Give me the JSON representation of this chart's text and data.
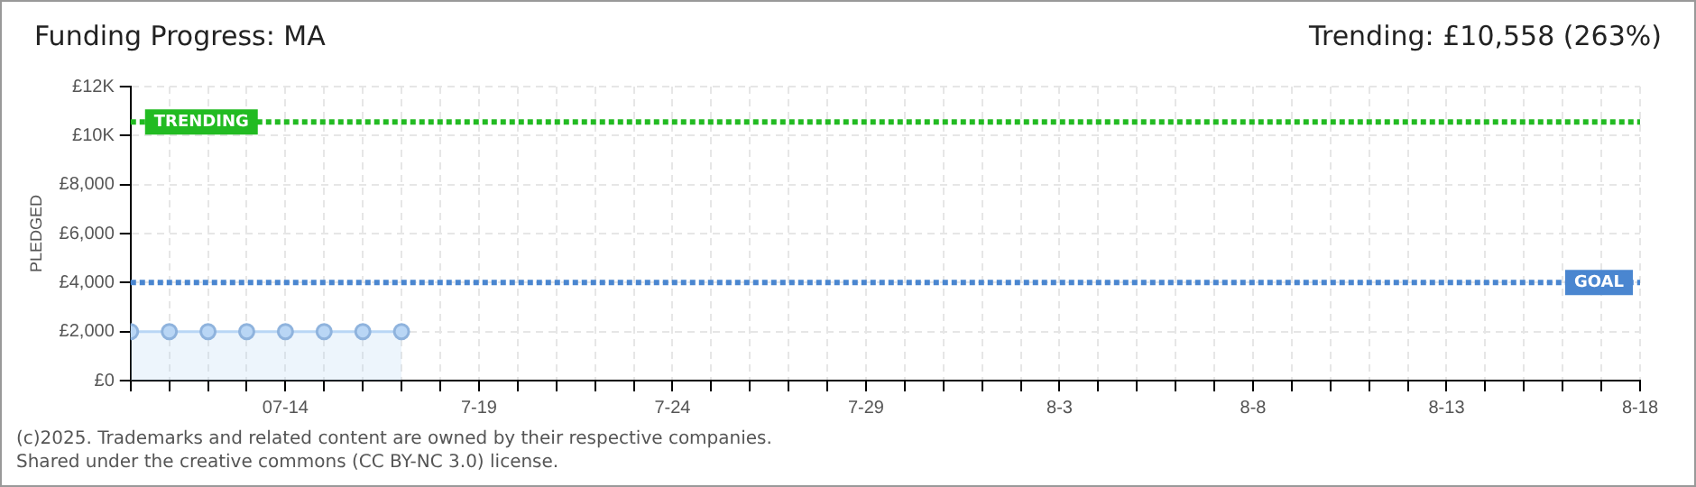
{
  "chart_data": {
    "type": "area",
    "title": "Funding Progress: MA",
    "subtitle": "Trending:  £10,558 (263%)",
    "ylabel": "PLEDGED",
    "x": [
      "2025-07-10",
      "2025-07-11",
      "2025-07-12",
      "2025-07-13",
      "2025-07-14",
      "2025-07-15",
      "2025-07-16",
      "2025-07-17"
    ],
    "series": [
      {
        "color": "#b9d6f5",
        "values": [
          2000,
          2000,
          2000,
          2000,
          2000,
          2000,
          2000,
          2000
        ]
      }
    ],
    "xlim": [
      "2025-07-10",
      "2025-08-18"
    ],
    "xticks": [
      {
        "value": "2025-07-10",
        "label": null
      },
      {
        "value": "2025-07-11",
        "label": null
      },
      {
        "value": "2025-07-12",
        "label": null
      },
      {
        "value": "2025-07-13",
        "label": null
      },
      {
        "value": "2025-07-14",
        "label": "07-14"
      },
      {
        "value": "2025-07-15",
        "label": null
      },
      {
        "value": "2025-07-16",
        "label": null
      },
      {
        "value": "2025-07-17",
        "label": null
      },
      {
        "value": "2025-07-18",
        "label": null
      },
      {
        "value": "2025-07-19",
        "label": "7-19"
      },
      {
        "value": "2025-07-20",
        "label": null
      },
      {
        "value": "2025-07-21",
        "label": null
      },
      {
        "value": "2025-07-22",
        "label": null
      },
      {
        "value": "2025-07-23",
        "label": null
      },
      {
        "value": "2025-07-24",
        "label": "7-24"
      },
      {
        "value": "2025-07-25",
        "label": null
      },
      {
        "value": "2025-07-26",
        "label": null
      },
      {
        "value": "2025-07-27",
        "label": null
      },
      {
        "value": "2025-07-28",
        "label": null
      },
      {
        "value": "2025-07-29",
        "label": "7-29"
      },
      {
        "value": "2025-07-30",
        "label": null
      },
      {
        "value": "2025-07-31",
        "label": null
      },
      {
        "value": "2025-08-01",
        "label": null
      },
      {
        "value": "2025-08-02",
        "label": null
      },
      {
        "value": "2025-08-03",
        "label": "8-3"
      },
      {
        "value": "2025-08-04",
        "label": null
      },
      {
        "value": "2025-08-05",
        "label": null
      },
      {
        "value": "2025-08-06",
        "label": null
      },
      {
        "value": "2025-08-07",
        "label": null
      },
      {
        "value": "2025-08-08",
        "label": "8-8"
      },
      {
        "value": "2025-08-09",
        "label": null
      },
      {
        "value": "2025-08-10",
        "label": null
      },
      {
        "value": "2025-08-11",
        "label": null
      },
      {
        "value": "2025-08-12",
        "label": null
      },
      {
        "value": "2025-08-13",
        "label": "8-13"
      },
      {
        "value": "2025-08-14",
        "label": null
      },
      {
        "value": "2025-08-15",
        "label": null
      },
      {
        "value": "2025-08-16",
        "label": null
      },
      {
        "value": "2025-08-17",
        "label": null
      },
      {
        "value": "2025-08-18",
        "label": "8-18"
      }
    ],
    "ylim": [
      0,
      12000
    ],
    "yticks": [
      {
        "value": 0,
        "label": "£0"
      },
      {
        "value": 2000,
        "label": "£2,000"
      },
      {
        "value": 4000,
        "label": "£4,000"
      },
      {
        "value": 6000,
        "label": "£6,000"
      },
      {
        "value": 8000,
        "label": "£8,000"
      },
      {
        "value": 10000,
        "label": "£10K"
      },
      {
        "value": 12000,
        "label": "£12K"
      }
    ],
    "ref_lines": [
      {
        "axis": "y",
        "value": 10558,
        "label": "TRENDING",
        "color": "#22bb22",
        "line_style": "dotted"
      },
      {
        "axis": "y",
        "value": 4000,
        "label": "GOAL",
        "color": "#4a86d0",
        "line_style": "dotted"
      }
    ],
    "grid": true,
    "legend": false,
    "marker": "circle",
    "line_style": "solid",
    "annotations": [
      "(c)2025. Trademarks and related content are owned by their respective companies.",
      "Shared under the creative commons (CC BY-NC 3.0) license."
    ]
  }
}
